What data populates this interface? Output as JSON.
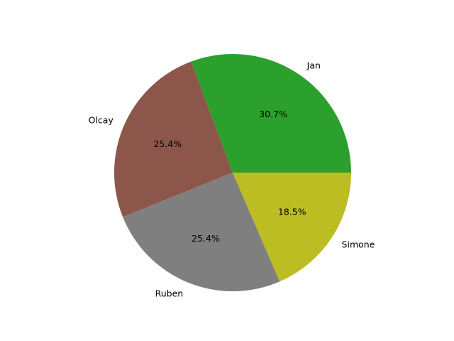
{
  "chart_data": {
    "type": "pie",
    "labels": [
      "Jan",
      "Olcay",
      "Ruben",
      "Simone"
    ],
    "values": [
      30.7,
      25.4,
      25.4,
      18.5
    ],
    "percent_labels": [
      "30.7%",
      "25.4%",
      "25.4%",
      "18.5%"
    ],
    "colors": [
      "#2ca02c",
      "#8c564b",
      "#7f7f7f",
      "#bcbd22"
    ],
    "start_angle_deg": 0,
    "direction": "counterclockwise",
    "legend": "none"
  }
}
